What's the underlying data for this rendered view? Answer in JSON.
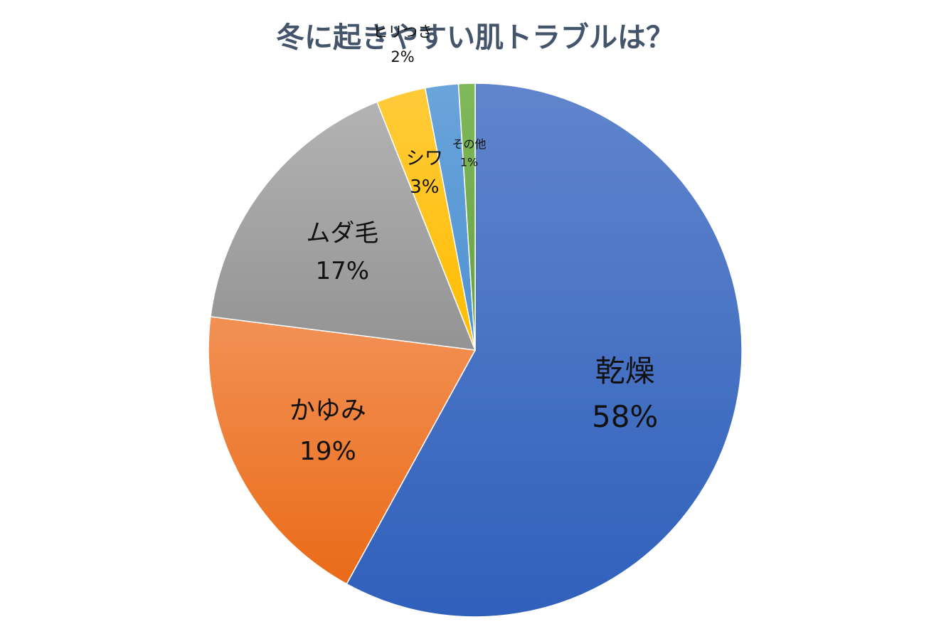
{
  "chart_data": {
    "type": "pie",
    "title": "冬に起きやすい肌トラブルは？",
    "start_angle_deg": 0,
    "direction": "clockwise",
    "slices": [
      {
        "label": "乾燥",
        "value": 58,
        "value_text": "58%",
        "color": "#4472c4",
        "color_light": "#6185cd",
        "color_dark": "#2f60bb"
      },
      {
        "label": "かゆみ",
        "value": 19,
        "value_text": "19%",
        "color": "#ed7d31",
        "color_light": "#f29155",
        "color_dark": "#ea6b18"
      },
      {
        "label": "ムダ毛",
        "value": 17,
        "value_text": "17%",
        "color": "#a5a5a5",
        "color_light": "#b3b3b3",
        "color_dark": "#939393"
      },
      {
        "label": "シワ",
        "value": 3,
        "value_text": "3%",
        "color": "#ffc000",
        "color_light": "#ffcb3a",
        "color_dark": "#ffbc00"
      },
      {
        "label": "ヒリつき",
        "value": 2,
        "value_text": "2%",
        "color": "#5b9bd5",
        "color_light": "#6aa4da",
        "color_dark": "#4e92d1"
      },
      {
        "label": "その他",
        "value": 1,
        "value_text": "1%",
        "color": "#70ad47",
        "color_light": "#80b95a",
        "color_dark": "#659f3e"
      }
    ]
  }
}
